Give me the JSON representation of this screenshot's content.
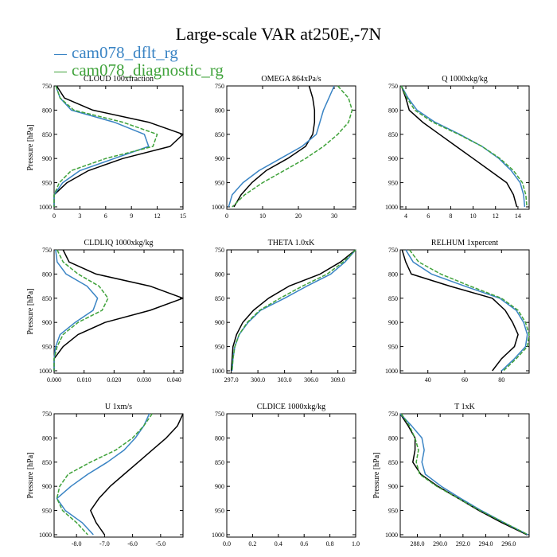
{
  "figure": {
    "title": "Large-scale VAR at250E,-7N",
    "legend": [
      {
        "name": "cam078_dflt_rg",
        "color": "#3a84c4"
      },
      {
        "name": "cam078_diagnostic_rg",
        "color": "#3fa23a"
      }
    ],
    "black_series_color": "#000000"
  },
  "chart_data": [
    {
      "type": "line",
      "title": "CLOUD 100xfraction",
      "ylabel": "Pressure [hPa]",
      "xlim": [
        0,
        15
      ],
      "ylim": [
        750,
        1005
      ],
      "grid": false,
      "xticks": [
        0,
        3,
        6,
        9,
        12,
        15
      ],
      "xtick_labels": [
        "0",
        "3",
        "6",
        "9",
        "12",
        "15"
      ],
      "yticks": [
        750,
        800,
        850,
        900,
        950,
        1000
      ],
      "ytick_labels": [
        "750",
        "800",
        "850",
        "900",
        "950",
        "1000"
      ],
      "series": [
        {
          "color": "#000000",
          "dash": false,
          "y": [
            750,
            775,
            800,
            825,
            850,
            875,
            900,
            925,
            950,
            975,
            1000
          ],
          "x": [
            0.3,
            1.2,
            4.5,
            11.0,
            15.0,
            13.5,
            8.0,
            4.0,
            1.5,
            0.0,
            0.0
          ]
        },
        {
          "color": "#3a84c4",
          "dash": false,
          "y": [
            750,
            775,
            800,
            825,
            850,
            875,
            900,
            925,
            950,
            975,
            1000
          ],
          "x": [
            0.2,
            0.7,
            2.0,
            7.0,
            10.5,
            11.0,
            7.0,
            3.0,
            1.0,
            0.0,
            0.0
          ]
        },
        {
          "color": "#3fa23a",
          "dash": true,
          "y": [
            750,
            775,
            800,
            825,
            850,
            875,
            900,
            925,
            950,
            975,
            1000
          ],
          "x": [
            0.2,
            0.7,
            2.3,
            8.0,
            12.0,
            11.5,
            6.0,
            2.0,
            0.6,
            0.0,
            0.0
          ]
        }
      ]
    },
    {
      "type": "line",
      "title": "OMEGA 864xPa/s",
      "ylabel": "",
      "xlim": [
        0,
        36
      ],
      "ylim": [
        750,
        1005
      ],
      "grid": false,
      "xticks": [
        0,
        10,
        20,
        30
      ],
      "xtick_labels": [
        "0",
        "10",
        "20",
        "30"
      ],
      "yticks": [
        750,
        800,
        850,
        900,
        950,
        1000
      ],
      "ytick_labels": [
        "750",
        "800",
        "850",
        "900",
        "950",
        "1000"
      ],
      "series": [
        {
          "color": "#000000",
          "dash": false,
          "y": [
            750,
            775,
            800,
            825,
            850,
            875,
            900,
            925,
            950,
            975,
            1000
          ],
          "x": [
            23.0,
            24.0,
            24.5,
            24.5,
            24.0,
            22.0,
            17.0,
            11.0,
            7.0,
            4.0,
            2.0
          ]
        },
        {
          "color": "#3a84c4",
          "dash": false,
          "y": [
            750,
            775,
            800,
            825,
            850,
            875,
            900,
            925,
            950,
            975,
            1000
          ],
          "x": [
            30.0,
            28.5,
            27.0,
            26.0,
            25.0,
            21.0,
            15.0,
            9.0,
            4.5,
            1.5,
            0.5
          ]
        },
        {
          "color": "#3fa23a",
          "dash": true,
          "y": [
            750,
            775,
            800,
            825,
            850,
            875,
            900,
            925,
            950,
            975,
            1000
          ],
          "x": [
            31.0,
            34.0,
            35.0,
            34.0,
            31.0,
            27.0,
            22.0,
            16.0,
            10.0,
            5.0,
            1.5
          ]
        }
      ]
    },
    {
      "type": "line",
      "title": "Q 1000xkg/kg",
      "ylabel": "",
      "xlim": [
        3.5,
        15
      ],
      "ylim": [
        750,
        1005
      ],
      "grid": false,
      "xticks": [
        4,
        6,
        8,
        10,
        12,
        14
      ],
      "xtick_labels": [
        "4",
        "6",
        "8",
        "10",
        "12",
        "14"
      ],
      "yticks": [
        750,
        800,
        850,
        900,
        950,
        1000
      ],
      "ytick_labels": [
        "750",
        "800",
        "850",
        "900",
        "950",
        "1000"
      ],
      "series": [
        {
          "color": "#000000",
          "dash": false,
          "y": [
            750,
            775,
            800,
            825,
            850,
            875,
            900,
            925,
            950,
            975,
            1000
          ],
          "x": [
            3.6,
            4.0,
            4.3,
            5.5,
            7.0,
            8.5,
            10.0,
            11.5,
            13.0,
            13.6,
            13.9
          ]
        },
        {
          "color": "#3a84c4",
          "dash": false,
          "y": [
            750,
            775,
            800,
            825,
            850,
            875,
            900,
            925,
            950,
            975,
            1000
          ],
          "x": [
            3.6,
            4.2,
            5.0,
            6.6,
            8.8,
            10.8,
            12.3,
            13.4,
            14.2,
            14.5,
            14.6
          ]
        },
        {
          "color": "#3fa23a",
          "dash": true,
          "y": [
            750,
            775,
            800,
            825,
            850,
            875,
            900,
            925,
            950,
            975,
            1000
          ],
          "x": [
            3.6,
            4.1,
            4.8,
            6.4,
            8.7,
            10.8,
            12.4,
            13.6,
            14.4,
            14.7,
            14.8
          ]
        }
      ]
    },
    {
      "type": "line",
      "title": "CLDLIQ 1000xkg/kg",
      "ylabel": "Pressure [hPa]",
      "xlim": [
        0,
        0.043
      ],
      "ylim": [
        750,
        1005
      ],
      "grid": false,
      "xticks": [
        0,
        0.01,
        0.02,
        0.03,
        0.04
      ],
      "xtick_labels": [
        "0.000",
        "0.010",
        "0.020",
        "0.030",
        "0.040"
      ],
      "yticks": [
        750,
        800,
        850,
        900,
        950,
        1000
      ],
      "ytick_labels": [
        "750",
        "800",
        "850",
        "900",
        "950",
        "1000"
      ],
      "series": [
        {
          "color": "#000000",
          "dash": false,
          "y": [
            750,
            775,
            800,
            825,
            850,
            875,
            900,
            925,
            950,
            975,
            1000
          ],
          "x": [
            0.003,
            0.005,
            0.014,
            0.032,
            0.043,
            0.032,
            0.017,
            0.008,
            0.003,
            0.0,
            0.0
          ]
        },
        {
          "color": "#3a84c4",
          "dash": false,
          "y": [
            750,
            775,
            800,
            825,
            850,
            875,
            900,
            925,
            950,
            975,
            1000
          ],
          "x": [
            0.0005,
            0.001,
            0.004,
            0.011,
            0.0145,
            0.013,
            0.007,
            0.002,
            0.0005,
            0.0,
            0.0
          ]
        },
        {
          "color": "#3fa23a",
          "dash": true,
          "y": [
            750,
            775,
            800,
            825,
            850,
            875,
            900,
            925,
            950,
            975,
            1000
          ],
          "x": [
            0.001,
            0.003,
            0.008,
            0.015,
            0.018,
            0.016,
            0.008,
            0.003,
            0.001,
            0.0,
            0.0
          ]
        }
      ]
    },
    {
      "type": "line",
      "title": "THETA 1.0xK",
      "ylabel": "",
      "xlim": [
        296.5,
        311
      ],
      "ylim": [
        750,
        1005
      ],
      "grid": false,
      "xticks": [
        297,
        300,
        303,
        306,
        309
      ],
      "xtick_labels": [
        "297.0",
        "300.0",
        "303.0",
        "306.0",
        "309.0"
      ],
      "yticks": [
        750,
        800,
        850,
        900,
        950,
        1000
      ],
      "ytick_labels": [
        "750",
        "800",
        "850",
        "900",
        "950",
        "1000"
      ],
      "series": [
        {
          "color": "#000000",
          "dash": false,
          "y": [
            750,
            775,
            800,
            825,
            850,
            875,
            900,
            925,
            950,
            975,
            1000
          ],
          "x": [
            311.0,
            309.3,
            307.0,
            303.5,
            301.2,
            299.5,
            298.3,
            297.6,
            297.2,
            297.1,
            297.0
          ]
        },
        {
          "color": "#3a84c4",
          "dash": false,
          "y": [
            750,
            775,
            800,
            825,
            850,
            875,
            900,
            925,
            950,
            975,
            1000
          ],
          "x": [
            311.0,
            309.8,
            308.2,
            305.5,
            303.0,
            300.3,
            298.9,
            297.9,
            297.4,
            297.2,
            297.1
          ]
        },
        {
          "color": "#3fa23a",
          "dash": true,
          "y": [
            750,
            775,
            800,
            825,
            850,
            875,
            900,
            925,
            950,
            975,
            1000
          ],
          "x": [
            311.0,
            309.6,
            307.8,
            305.0,
            302.5,
            300.2,
            298.8,
            297.9,
            297.4,
            297.2,
            297.1
          ]
        }
      ]
    },
    {
      "type": "line",
      "title": "RELHUM 1xpercent",
      "ylabel": "",
      "xlim": [
        25,
        95
      ],
      "ylim": [
        750,
        1005
      ],
      "grid": false,
      "xticks": [
        40,
        60,
        80
      ],
      "xtick_labels": [
        "40",
        "60",
        "80"
      ],
      "yticks": [
        750,
        800,
        850,
        900,
        950,
        1000
      ],
      "ytick_labels": [
        "750",
        "800",
        "850",
        "900",
        "950",
        "1000"
      ],
      "series": [
        {
          "color": "#000000",
          "dash": false,
          "y": [
            750,
            775,
            800,
            825,
            850,
            875,
            900,
            925,
            950,
            975,
            1000
          ],
          "x": [
            26,
            28,
            31,
            52,
            75,
            82,
            86,
            89,
            87,
            80,
            75
          ]
        },
        {
          "color": "#3a84c4",
          "dash": false,
          "y": [
            750,
            775,
            800,
            825,
            850,
            875,
            900,
            925,
            950,
            975,
            1000
          ],
          "x": [
            28,
            32,
            42,
            60,
            79,
            88,
            92,
            94,
            93,
            87,
            80
          ]
        },
        {
          "color": "#3fa23a",
          "dash": true,
          "y": [
            750,
            775,
            800,
            825,
            850,
            875,
            900,
            925,
            950,
            975,
            1000
          ],
          "x": [
            30,
            35,
            47,
            63,
            80,
            89,
            93,
            95,
            94,
            88,
            81
          ]
        }
      ]
    },
    {
      "type": "line",
      "title": "U 1xm/s",
      "ylabel": "Pressure [hPa]",
      "xlim": [
        -8.8,
        -4.2
      ],
      "ylim": [
        750,
        1005
      ],
      "grid": false,
      "xticks": [
        -8,
        -7,
        -6,
        -5
      ],
      "xtick_labels": [
        "-8.0",
        "-7.0",
        "-6.0",
        "-5.0"
      ],
      "yticks": [
        750,
        800,
        850,
        900,
        950,
        1000
      ],
      "ytick_labels": [
        "750",
        "800",
        "850",
        "900",
        "950",
        "1000"
      ],
      "series": [
        {
          "color": "#000000",
          "dash": false,
          "y": [
            750,
            775,
            800,
            825,
            850,
            875,
            900,
            925,
            950,
            975,
            1000
          ],
          "x": [
            -4.2,
            -4.4,
            -4.8,
            -5.3,
            -5.8,
            -6.3,
            -6.8,
            -7.2,
            -7.5,
            -7.3,
            -7.0
          ]
        },
        {
          "color": "#3a84c4",
          "dash": false,
          "y": [
            750,
            775,
            800,
            825,
            850,
            875,
            900,
            925,
            950,
            975,
            1000
          ],
          "x": [
            -5.4,
            -5.6,
            -5.9,
            -6.3,
            -6.9,
            -7.6,
            -8.2,
            -8.7,
            -8.4,
            -7.8,
            -7.4
          ]
        },
        {
          "color": "#3fa23a",
          "dash": true,
          "y": [
            750,
            775,
            800,
            825,
            850,
            875,
            900,
            925,
            950,
            975,
            1000
          ],
          "x": [
            -5.3,
            -5.6,
            -6.0,
            -6.6,
            -7.5,
            -8.3,
            -8.6,
            -8.7,
            -8.5,
            -8.0,
            -7.6
          ]
        }
      ]
    },
    {
      "type": "line",
      "title": "CLDICE 1000xkg/kg",
      "ylabel": "",
      "xlim": [
        0,
        1
      ],
      "ylim": [
        750,
        1005
      ],
      "grid": false,
      "xticks": [
        0,
        0.2,
        0.4,
        0.6,
        0.8,
        1.0
      ],
      "xtick_labels": [
        "0.0",
        "0.2",
        "0.4",
        "0.6",
        "0.8",
        "1.0"
      ],
      "yticks": [
        750,
        800,
        850,
        900,
        950,
        1000
      ],
      "ytick_labels": [
        "750",
        "800",
        "850",
        "900",
        "950",
        "1000"
      ],
      "series": []
    },
    {
      "type": "line",
      "title": "T 1xK",
      "ylabel": "Pressure [hPa]",
      "xlim": [
        286.5,
        297.8
      ],
      "ylim": [
        750,
        1005
      ],
      "grid": false,
      "xticks": [
        288,
        290,
        292,
        294,
        296
      ],
      "xtick_labels": [
        "288.0",
        "290.0",
        "292.0",
        "294.0",
        "296.0"
      ],
      "yticks": [
        750,
        800,
        850,
        900,
        950,
        1000
      ],
      "ytick_labels": [
        "750",
        "800",
        "850",
        "900",
        "950",
        "1000"
      ],
      "series": [
        {
          "color": "#000000",
          "dash": false,
          "y": [
            750,
            775,
            800,
            825,
            850,
            875,
            900,
            925,
            950,
            975,
            1000
          ],
          "x": [
            286.5,
            287.2,
            287.8,
            287.8,
            287.6,
            288.3,
            289.8,
            291.6,
            293.4,
            295.4,
            297.6
          ]
        },
        {
          "color": "#3a84c4",
          "dash": false,
          "y": [
            750,
            775,
            800,
            825,
            850,
            875,
            900,
            925,
            950,
            975,
            1000
          ],
          "x": [
            286.5,
            287.5,
            288.4,
            288.6,
            288.4,
            288.7,
            290.1,
            291.8,
            293.6,
            295.6,
            297.7
          ]
        },
        {
          "color": "#3fa23a",
          "dash": true,
          "y": [
            750,
            775,
            800,
            825,
            850,
            875,
            900,
            925,
            950,
            975,
            1000
          ],
          "x": [
            286.6,
            287.3,
            287.8,
            288.1,
            287.9,
            288.2,
            289.7,
            291.6,
            293.5,
            295.6,
            297.7
          ]
        }
      ]
    }
  ]
}
